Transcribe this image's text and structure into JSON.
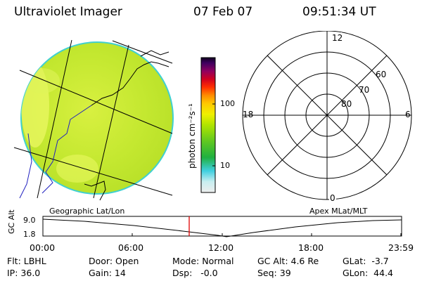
{
  "header": {
    "instrument": "Ultraviolet Imager",
    "date": "07 Feb 07",
    "time": "09:51:34 UT"
  },
  "colorbar": {
    "label": "photon cm⁻²s⁻¹",
    "tick_100": "100",
    "tick_10": "10",
    "scale": "log",
    "colors": [
      "#e8e8e8",
      "#c8eef0",
      "#40d0e0",
      "#20b040",
      "#50c020",
      "#a0e000",
      "#e8f000",
      "#ffd000",
      "#ff9000",
      "#ff4000",
      "#d00020",
      "#a00050",
      "#500060",
      "#100020"
    ]
  },
  "polar_plot": {
    "mlt_labels": {
      "top": "12",
      "bottom": "0",
      "left": "18",
      "right": "6"
    },
    "lat_labels": [
      "60",
      "70",
      "80"
    ]
  },
  "projection_labels": {
    "left": "Geographic Lat/Lon",
    "right": "Apex MLat/MLT"
  },
  "altitude_strip": {
    "ylabel": "GC Alt",
    "y_top": "9.0",
    "y_bottom": "1.8",
    "time_ticks": [
      "00:00",
      "06:00",
      "12:00",
      "18:00",
      "23:59"
    ],
    "current_time_marker_color": "#e00000"
  },
  "status": {
    "filter": "Flt: LBHL",
    "ip": "IP: 36.0",
    "door": "Door: Open",
    "gain": "Gain: 14",
    "mode": "Mode: Normal",
    "dsp": "Dsp:   -0.0",
    "gc_alt": "GC Alt: 4.6 Re",
    "seq": "Seq: 39",
    "glat": "GLat:  -3.7",
    "glon": "GLon:  44.4"
  },
  "colors": {
    "disk_fill": "#c8ec30",
    "disk_light": "#e6f550",
    "disk_edge": "#40d0d0",
    "line": "#000000",
    "coast": "#2020c0"
  }
}
